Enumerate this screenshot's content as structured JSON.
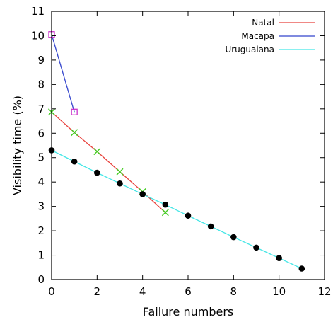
{
  "chart_data": {
    "type": "line",
    "title": "",
    "xlabel": "Failure numbers",
    "ylabel": "Visibility time (%)",
    "xlim": [
      0,
      12
    ],
    "ylim": [
      0,
      11
    ],
    "x_ticks": [
      0,
      2,
      4,
      6,
      8,
      10,
      12
    ],
    "y_ticks": [
      0,
      1,
      2,
      3,
      4,
      5,
      6,
      7,
      8,
      9,
      10,
      11
    ],
    "grid": false,
    "legend_position": "top-right",
    "series": [
      {
        "name": "Natal",
        "color": "#e8413c",
        "marker": "x",
        "marker_color": "#44cc22",
        "x": [
          0,
          1,
          2,
          3,
          4,
          5
        ],
        "y": [
          6.87,
          6.03,
          5.25,
          4.42,
          3.6,
          2.75
        ]
      },
      {
        "name": "Macapa",
        "color": "#3344cc",
        "marker": "open-square",
        "marker_color": "#cc33cc",
        "x": [
          0,
          1
        ],
        "y": [
          10.05,
          6.87
        ]
      },
      {
        "name": "Uruguaiana",
        "color": "#44e6e6",
        "marker": "filled-circle",
        "marker_color": "#000000",
        "x": [
          0,
          1,
          2,
          3,
          4,
          5,
          6,
          7,
          8,
          9,
          10,
          11
        ],
        "y": [
          5.3,
          4.84,
          4.38,
          3.94,
          3.5,
          3.07,
          2.62,
          2.18,
          1.74,
          1.31,
          0.88,
          0.45
        ]
      }
    ]
  }
}
